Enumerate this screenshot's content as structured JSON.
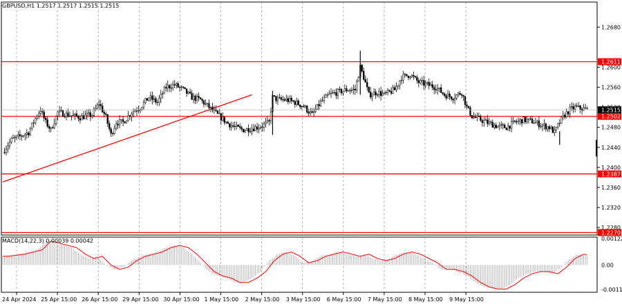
{
  "chart_data": {
    "type": "candlestick",
    "symbol_header": "GBPUSD,H1  1.2517 1.2517 1.2515 1.2515",
    "price_axis": {
      "range": [
        1.2265,
        1.273
      ],
      "ticks": [
        "1.2680",
        "1.2600",
        "1.2560",
        "1.2520",
        "1.2480",
        "1.2440",
        "1.2400",
        "1.2360",
        "1.2320",
        "1.2280"
      ]
    },
    "time_axis": {
      "labels": [
        "24 Apr 2024",
        "25 Apr 15:00",
        "26 Apr 15:00",
        "29 Apr 15:00",
        "30 Apr 15:00",
        "1 May 15:00",
        "2 May 15:00",
        "3 May 15:00",
        "6 May 15:00",
        "7 May 15:00",
        "8 May 15:00",
        "9 May 15:00"
      ]
    },
    "horizontal_levels": [
      {
        "label": "1.2611",
        "value": 1.2611,
        "color": "#ff0000"
      },
      {
        "label": "1.2502",
        "value": 1.2502,
        "color": "#ff0000"
      },
      {
        "label": "1.2387",
        "value": 1.2387,
        "color": "#ff0000"
      },
      {
        "label": "1.2270",
        "value": 1.227,
        "color": "#ff0000"
      }
    ],
    "current_price": {
      "label": "1.2515",
      "value": 1.2515
    },
    "trendline": {
      "from": {
        "bar": 0,
        "price": 1.2371
      },
      "to": {
        "bar": 145,
        "price": 1.2545
      },
      "color": "#ff0000"
    },
    "close_path": [
      [
        0,
        1.243
      ],
      [
        5,
        1.2455
      ],
      [
        10,
        1.2462
      ],
      [
        15,
        1.247
      ],
      [
        20,
        1.2505
      ],
      [
        22,
        1.2515
      ],
      [
        25,
        1.249
      ],
      [
        28,
        1.2475
      ],
      [
        32,
        1.251
      ],
      [
        38,
        1.2505
      ],
      [
        45,
        1.25
      ],
      [
        52,
        1.2505
      ],
      [
        56,
        1.2528
      ],
      [
        60,
        1.25
      ],
      [
        63,
        1.2465
      ],
      [
        66,
        1.249
      ],
      [
        70,
        1.249
      ],
      [
        75,
        1.251
      ],
      [
        80,
        1.252
      ],
      [
        85,
        1.254
      ],
      [
        90,
        1.253
      ],
      [
        95,
        1.256
      ],
      [
        100,
        1.2565
      ],
      [
        105,
        1.2555
      ],
      [
        110,
        1.254
      ],
      [
        115,
        1.2535
      ],
      [
        120,
        1.252
      ],
      [
        125,
        1.2505
      ],
      [
        130,
        1.249
      ],
      [
        135,
        1.248
      ],
      [
        140,
        1.2475
      ],
      [
        145,
        1.2478
      ],
      [
        150,
        1.2482
      ],
      [
        155,
        1.249
      ],
      [
        157,
        1.254
      ],
      [
        160,
        1.2535
      ],
      [
        165,
        1.2535
      ],
      [
        170,
        1.253
      ],
      [
        175,
        1.2522
      ],
      [
        180,
        1.2505
      ],
      [
        185,
        1.253
      ],
      [
        190,
        1.2545
      ],
      [
        195,
        1.255
      ],
      [
        200,
        1.2555
      ],
      [
        205,
        1.2555
      ],
      [
        208,
        1.26
      ],
      [
        210,
        1.258
      ],
      [
        213,
        1.2545
      ],
      [
        218,
        1.255
      ],
      [
        222,
        1.2545
      ],
      [
        228,
        1.2555
      ],
      [
        232,
        1.258
      ],
      [
        237,
        1.2585
      ],
      [
        242,
        1.257
      ],
      [
        247,
        1.2565
      ],
      [
        252,
        1.256
      ],
      [
        257,
        1.2545
      ],
      [
        262,
        1.254
      ],
      [
        267,
        1.255
      ],
      [
        270,
        1.252
      ],
      [
        273,
        1.2502
      ],
      [
        278,
        1.2495
      ],
      [
        283,
        1.2488
      ],
      [
        288,
        1.2482
      ],
      [
        293,
        1.248
      ],
      [
        298,
        1.249
      ],
      [
        303,
        1.2495
      ],
      [
        308,
        1.2492
      ],
      [
        313,
        1.2485
      ],
      [
        318,
        1.248
      ],
      [
        321,
        1.247
      ],
      [
        324,
        1.249
      ],
      [
        327,
        1.2505
      ],
      [
        330,
        1.2515
      ],
      [
        333,
        1.252
      ],
      [
        336,
        1.2518
      ],
      [
        340,
        1.2515
      ]
    ],
    "macd": {
      "label": "MACD(14,22,3) 0.00039 0.00042",
      "ticks": [
        "0.00122",
        "0.00",
        "-0.00112"
      ],
      "range": [
        -0.00125,
        0.00128
      ],
      "histogram": [
        [
          0,
          0.0004
        ],
        [
          10,
          0.0005
        ],
        [
          20,
          0.0007
        ],
        [
          25,
          0.0011
        ],
        [
          30,
          0.001
        ],
        [
          35,
          0.0009
        ],
        [
          40,
          0.0008
        ],
        [
          45,
          0.0005
        ],
        [
          50,
          0.0003
        ],
        [
          55,
          0.0004
        ],
        [
          60,
          0.0
        ],
        [
          65,
          -0.0002
        ],
        [
          70,
          -0.0001
        ],
        [
          75,
          0.0002
        ],
        [
          80,
          0.0004
        ],
        [
          85,
          0.0005
        ],
        [
          90,
          0.0006
        ],
        [
          95,
          0.0008
        ],
        [
          100,
          0.0009
        ],
        [
          105,
          0.0008
        ],
        [
          110,
          0.0005
        ],
        [
          115,
          0.0001
        ],
        [
          120,
          -0.0003
        ],
        [
          125,
          -0.0005
        ],
        [
          130,
          -0.0006
        ],
        [
          135,
          -0.0008
        ],
        [
          140,
          -0.0008
        ],
        [
          145,
          -0.0006
        ],
        [
          150,
          -0.0003
        ],
        [
          155,
          0.0002
        ],
        [
          160,
          0.0005
        ],
        [
          165,
          0.0006
        ],
        [
          170,
          0.0004
        ],
        [
          175,
          0.0001
        ],
        [
          180,
          0.0002
        ],
        [
          185,
          0.0004
        ],
        [
          190,
          0.0005
        ],
        [
          195,
          0.0006
        ],
        [
          200,
          0.0005
        ],
        [
          205,
          0.0004
        ],
        [
          210,
          0.0005
        ],
        [
          215,
          0.0003
        ],
        [
          220,
          0.0002
        ],
        [
          225,
          0.0003
        ],
        [
          230,
          0.0005
        ],
        [
          235,
          0.0006
        ],
        [
          240,
          0.0005
        ],
        [
          245,
          0.0003
        ],
        [
          250,
          0.0001
        ],
        [
          255,
          -0.0002
        ],
        [
          260,
          -0.0002
        ],
        [
          265,
          -0.0003
        ],
        [
          270,
          -0.0005
        ],
        [
          275,
          -0.0008
        ],
        [
          280,
          -0.001
        ],
        [
          285,
          -0.0011
        ],
        [
          290,
          -0.0011
        ],
        [
          295,
          -0.0009
        ],
        [
          300,
          -0.0006
        ],
        [
          305,
          -0.0004
        ],
        [
          310,
          -0.0003
        ],
        [
          315,
          -0.0003
        ],
        [
          320,
          -0.0004
        ],
        [
          325,
          -0.0001
        ],
        [
          330,
          0.0003
        ],
        [
          335,
          0.0005
        ],
        [
          340,
          0.0004
        ]
      ]
    }
  }
}
